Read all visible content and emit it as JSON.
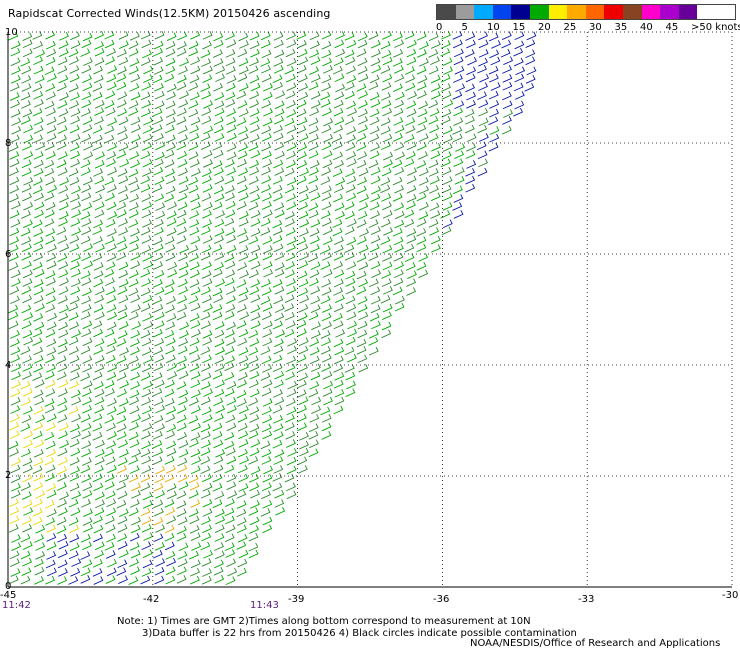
{
  "title": "Rapidscat Corrected Winds(12.5KM) 20150426 ascending",
  "legend": {
    "colors": [
      "#4a4a4a",
      "#9c9c9c",
      "#00aaff",
      "#0044ee",
      "#000090",
      "#00aa00",
      "#ffee00",
      "#ffaa00",
      "#ff6600",
      "#ee0000",
      "#884422",
      "#ff00cc",
      "#aa00cc",
      "#660099"
    ],
    "labels": [
      "0",
      "5",
      "10",
      "15",
      "20",
      "25",
      "30",
      "35",
      "40",
      "45",
      ">50 knots"
    ]
  },
  "map": {
    "x_ticks": [
      "-45",
      "-42",
      "-39",
      "-36",
      "-33",
      "-30"
    ],
    "y_ticks": [
      "0",
      "2",
      "4",
      "6",
      "8",
      "10"
    ],
    "lon_range": [
      -45,
      -30
    ],
    "lat_range": [
      0,
      10
    ],
    "times": [
      "11:42",
      "11:43"
    ]
  },
  "notes": {
    "line1": "Note: 1) Times are GMT 2)Times along bottom correspond to measurement at 10N",
    "line2": "3)Data buffer is 22 hrs from 20150426 4) Black circles indicate possible contamination",
    "credit": "NOAA/NESDIS/Office of Research and Applications"
  }
}
